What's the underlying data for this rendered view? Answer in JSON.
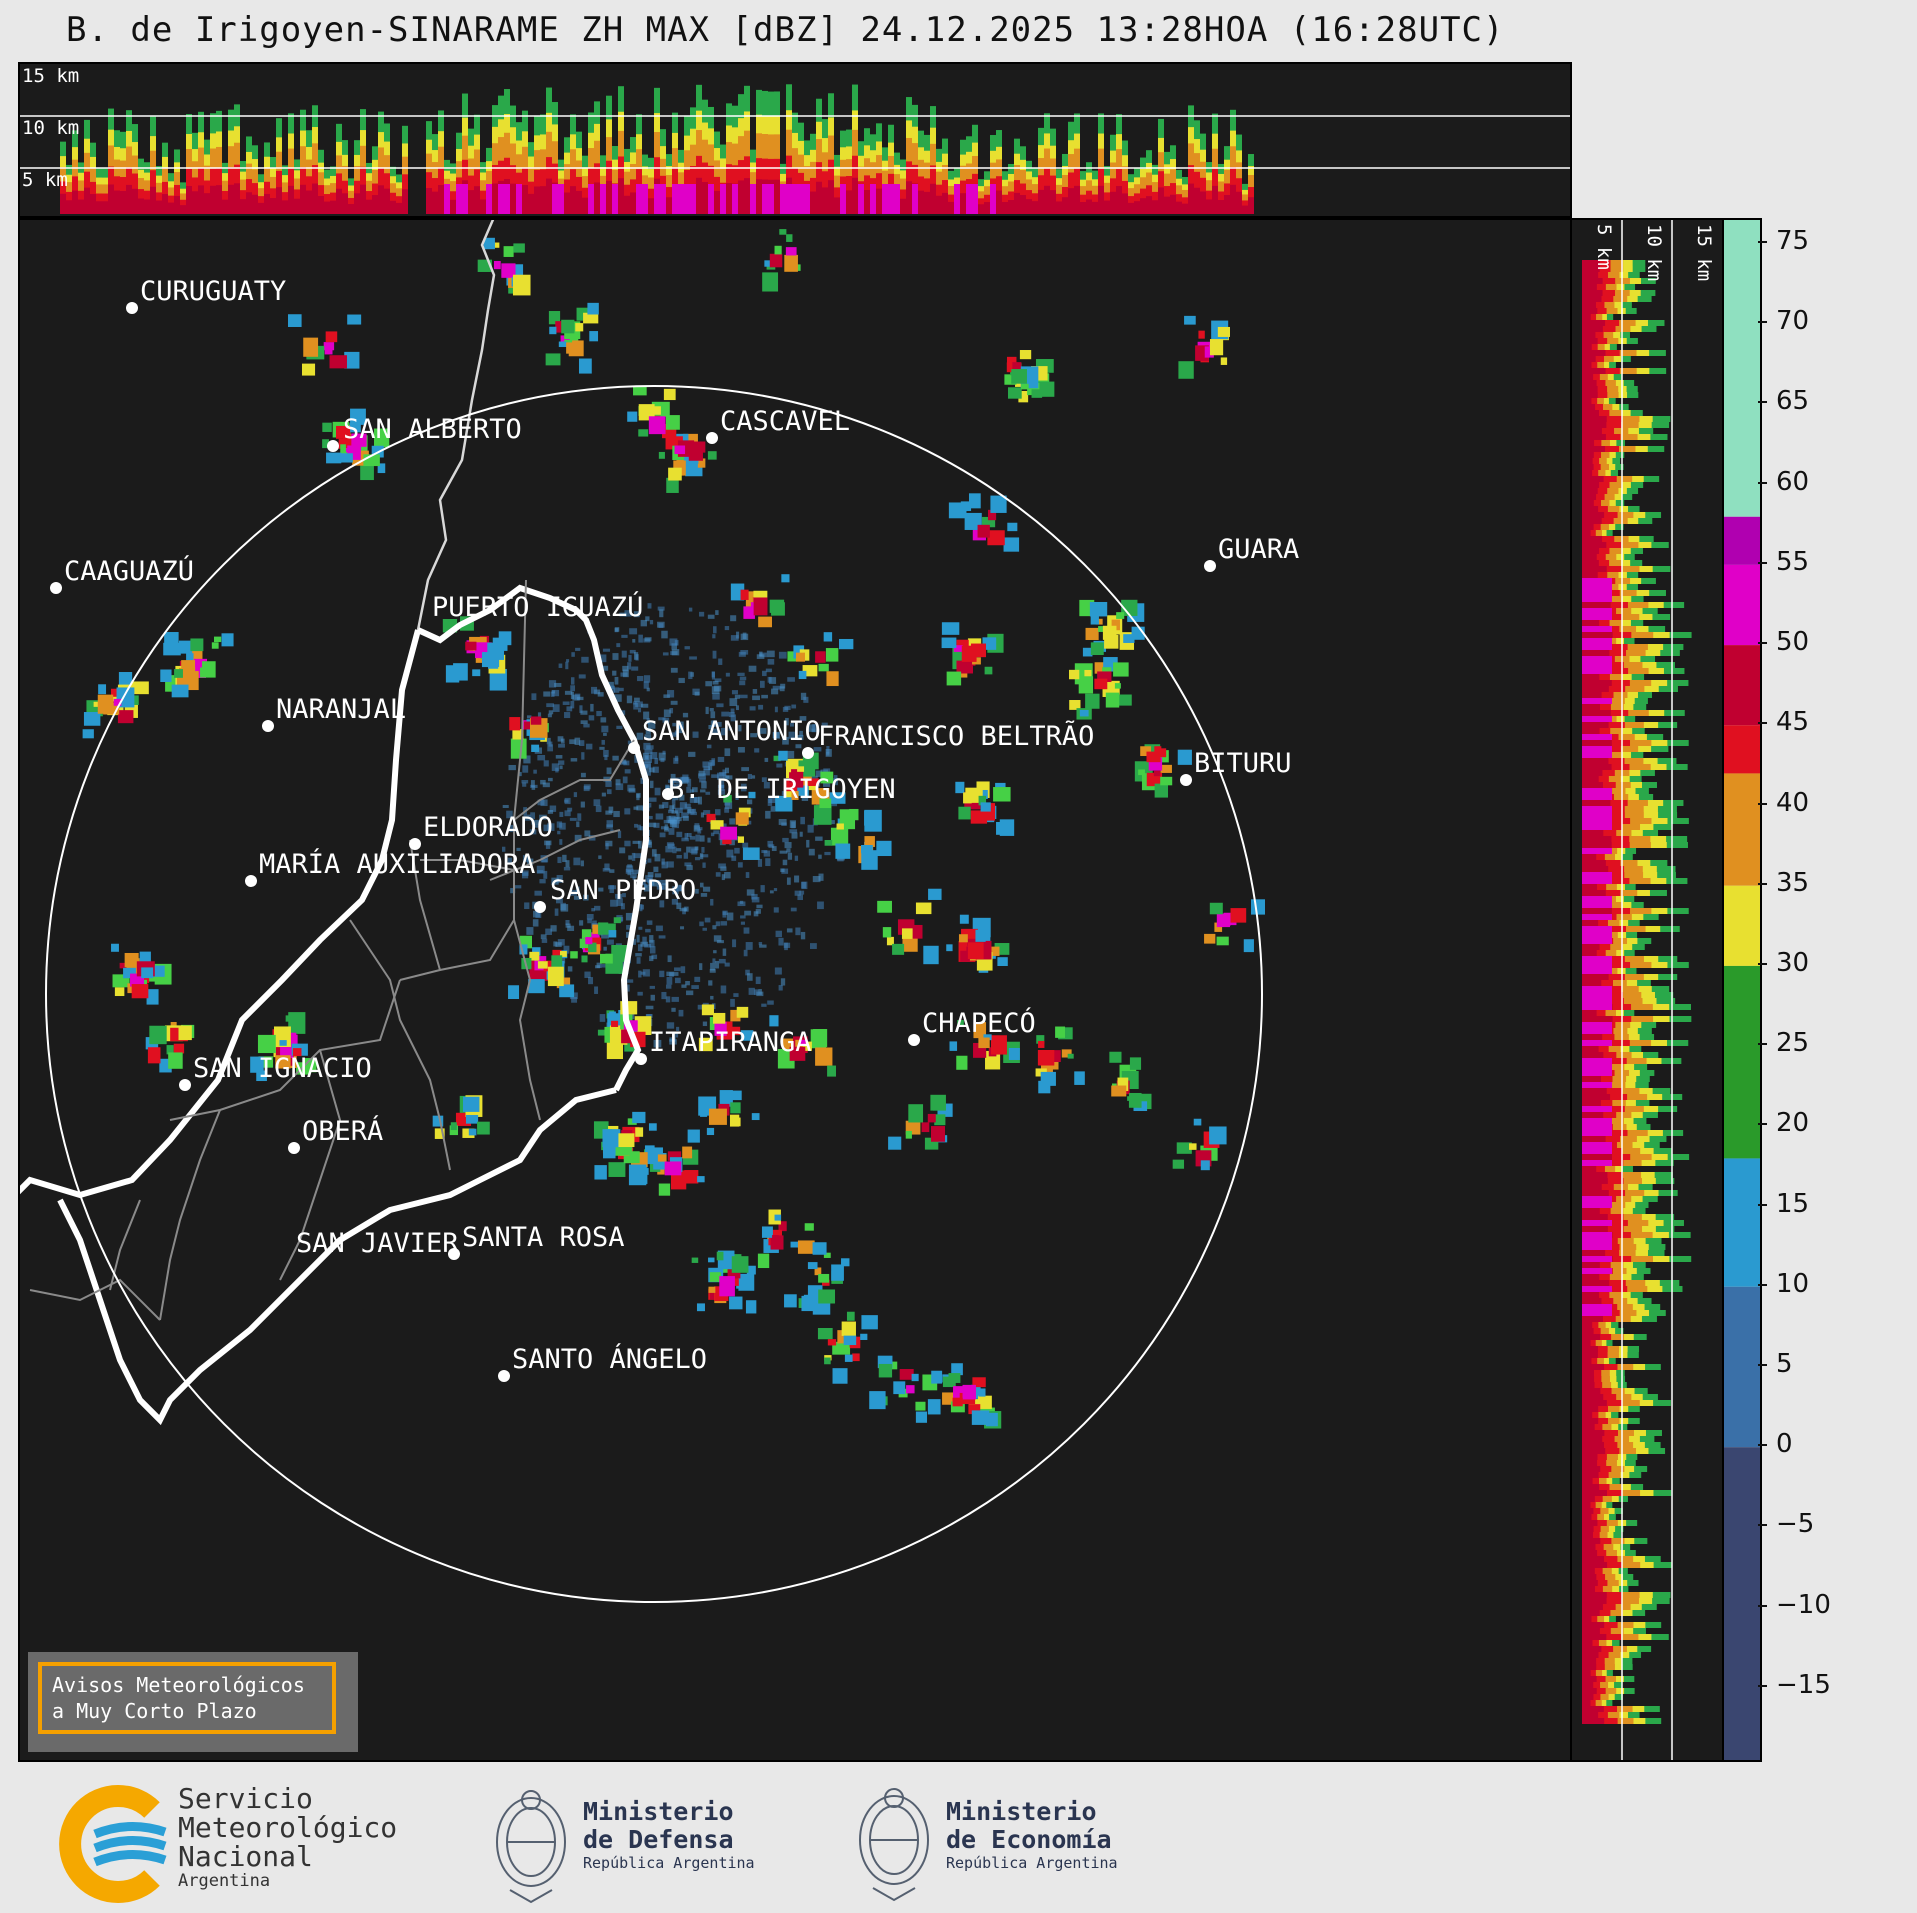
{
  "title": "B. de Irigoyen-SINARAME ZH MAX [dBZ] 24.12.2025 13:28HOA (16:28UTC)",
  "top_panel": {
    "height_labels": [
      "15 km",
      "10 km",
      "5 km"
    ]
  },
  "side_panel": {
    "height_labels": [
      "5 km",
      "10 km",
      "15 km"
    ]
  },
  "map": {
    "cities": [
      {
        "name": "CURUGUATY"
      },
      {
        "name": "SAN ALBERTO"
      },
      {
        "name": "CASCAVEL"
      },
      {
        "name": "CAAGUAZÚ"
      },
      {
        "name": "GUARA"
      },
      {
        "name": "PUERTO IGUAZÚ"
      },
      {
        "name": "NARANJAL"
      },
      {
        "name": "SAN ANTONIO"
      },
      {
        "name": "FRANCISCO BELTRÃO"
      },
      {
        "name": "B. DE IRIGOYEN"
      },
      {
        "name": "BITURU"
      },
      {
        "name": "ELDORADO"
      },
      {
        "name": "MARÍA AUXILIADORA"
      },
      {
        "name": "SAN PEDRO"
      },
      {
        "name": "CHAPECÓ"
      },
      {
        "name": "ITAPIRANGA"
      },
      {
        "name": "SAN IGNACIO"
      },
      {
        "name": "OBERÁ"
      },
      {
        "name": "SAN JAVIER"
      },
      {
        "name": "SANTA ROSA"
      },
      {
        "name": "SANTO ÁNGELO"
      }
    ]
  },
  "colorbar": {
    "unit": "dBZ",
    "ticks": [
      "75",
      "70",
      "65",
      "60",
      "55",
      "50",
      "45",
      "40",
      "35",
      "30",
      "25",
      "20",
      "15",
      "10",
      "5",
      "0",
      "−5",
      "−10",
      "−15"
    ],
    "bands": [
      {
        "from": 58,
        "to": 76.5,
        "color": "#8fe0c0"
      },
      {
        "from": 55,
        "to": 58,
        "color": "#b000b0"
      },
      {
        "from": 50,
        "to": 55,
        "color": "#e000c8"
      },
      {
        "from": 45,
        "to": 50,
        "color": "#c00030"
      },
      {
        "from": 42,
        "to": 45,
        "color": "#e01020"
      },
      {
        "from": 35,
        "to": 42,
        "color": "#e09020"
      },
      {
        "from": 30,
        "to": 35,
        "color": "#e8e030"
      },
      {
        "from": 18,
        "to": 30,
        "color": "#2a9a2a"
      },
      {
        "from": 10,
        "to": 18,
        "color": "#2a9ad0"
      },
      {
        "from": 0,
        "to": 10,
        "color": "#3a70a8"
      },
      {
        "from": -19.5,
        "to": 0,
        "color": "#3a4670"
      }
    ]
  },
  "notice": {
    "line1": "Avisos Meteorológicos",
    "line2": "a Muy Corto Plazo"
  },
  "logos": {
    "smn": {
      "line1": "Servicio",
      "line2": "Meteorológico",
      "line3": "Nacional",
      "line4": "Argentina"
    },
    "defensa": {
      "line1": "Ministerio",
      "line2": "de Defensa",
      "line3": "República Argentina"
    },
    "economia": {
      "line1": "Ministerio",
      "line2": "de Economía",
      "line3": "República Argentina"
    }
  },
  "colors": {
    "background": "#1b1b1b",
    "page": "#e8e8e8",
    "smn_blue": "#2a9fd6",
    "smn_yellow": "#f5a800",
    "ministry_navy": "#2a3550"
  }
}
